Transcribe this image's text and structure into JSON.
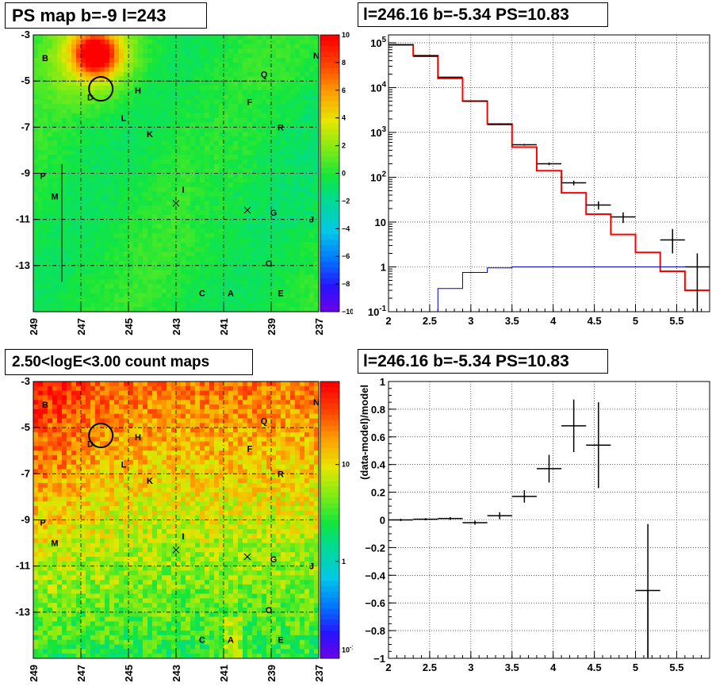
{
  "panels": {
    "ps_map": {
      "title": "PS map b=-9 l=243"
    },
    "spectrum": {
      "title": "l=246.16 b=-5.34 PS=10.83"
    },
    "count_map": {
      "title": "2.50<logE<3.00 count maps"
    },
    "residual": {
      "title": "l=246.16 b=-5.34 PS=10.83"
    }
  },
  "source_labels": [
    "B",
    "N",
    "Q",
    "D",
    "H",
    "F",
    "L",
    "R",
    "K",
    "P",
    "I",
    "M",
    "G",
    "J",
    "O",
    "C",
    "A",
    "E"
  ],
  "colors": {
    "data_line": "#000000",
    "model_red": "#ff0000",
    "model_blue": "#0000cc"
  },
  "chart_data": [
    {
      "type": "heatmap",
      "title": "PS map b=-9 l=243",
      "x_ticks": [
        "249",
        "247",
        "245",
        "243",
        "241",
        "239",
        "237"
      ],
      "y_ticks": [
        "-3",
        "-5",
        "-7",
        "-9",
        "-11",
        "-13"
      ],
      "xlim": [
        249,
        237
      ],
      "ylim": [
        -3,
        -15
      ],
      "colorbar": {
        "min": -10,
        "max": 10,
        "ticks": [
          "10",
          "8",
          "6",
          "4",
          "2",
          "0",
          "−2",
          "−4",
          "−6",
          "−8",
          "−10"
        ]
      },
      "sources": [
        {
          "name": "B",
          "l": 248.5,
          "b": -4.0
        },
        {
          "name": "N",
          "l": 237.1,
          "b": -3.9
        },
        {
          "name": "Q",
          "l": 239.3,
          "b": -4.7
        },
        {
          "name": "D",
          "l": 246.6,
          "b": -5.7
        },
        {
          "name": "H",
          "l": 244.6,
          "b": -5.4
        },
        {
          "name": "F",
          "l": 239.9,
          "b": -5.9
        },
        {
          "name": "L",
          "l": 245.2,
          "b": -6.6
        },
        {
          "name": "R",
          "l": 238.6,
          "b": -7.0
        },
        {
          "name": "K",
          "l": 244.1,
          "b": -7.3
        },
        {
          "name": "P",
          "l": 248.6,
          "b": -9.1
        },
        {
          "name": "I",
          "l": 242.7,
          "b": -9.7
        },
        {
          "name": "M",
          "l": 248.1,
          "b": -10.0
        },
        {
          "name": "G",
          "l": 238.9,
          "b": -10.7
        },
        {
          "name": "J",
          "l": 237.3,
          "b": -11.0
        },
        {
          "name": "O",
          "l": 239.1,
          "b": -12.9
        },
        {
          "name": "C",
          "l": 241.9,
          "b": -14.2
        },
        {
          "name": "A",
          "l": 240.7,
          "b": -14.2
        },
        {
          "name": "E",
          "l": 238.6,
          "b": -14.2
        }
      ],
      "circle": {
        "l": 246.16,
        "b": -5.34
      },
      "crosses": [
        {
          "l": 243.0,
          "b": -10.3
        },
        {
          "l": 240.0,
          "b": -10.6
        }
      ]
    },
    {
      "type": "line",
      "title": "l=246.16 b=-5.34 PS=10.83",
      "x_ticks": [
        "2",
        "2.5",
        "3",
        "3.5",
        "4",
        "4.5",
        "5",
        "5.5"
      ],
      "xlim": [
        2,
        5.9
      ],
      "yscale": "log",
      "ylim": [
        0.1,
        150000
      ],
      "y_ticks": [
        "10^-1",
        "1",
        "10",
        "10^2",
        "10^3",
        "10^4",
        "10^5"
      ],
      "grid": true,
      "data_points": [
        {
          "x": 2.15,
          "xerr": 0.15,
          "y": 90000,
          "yerr_lo": 300,
          "yerr_hi": 300
        },
        {
          "x": 2.45,
          "xerr": 0.15,
          "y": 50000,
          "yerr_lo": 220,
          "yerr_hi": 220
        },
        {
          "x": 2.75,
          "xerr": 0.15,
          "y": 17000,
          "yerr_lo": 130,
          "yerr_hi": 130
        },
        {
          "x": 3.05,
          "xerr": 0.15,
          "y": 5000,
          "yerr_lo": 70,
          "yerr_hi": 70
        },
        {
          "x": 3.35,
          "xerr": 0.15,
          "y": 1500,
          "yerr_lo": 40,
          "yerr_hi": 40
        },
        {
          "x": 3.65,
          "xerr": 0.15,
          "y": 530,
          "yerr_lo": 23,
          "yerr_hi": 23
        },
        {
          "x": 3.95,
          "xerr": 0.15,
          "y": 200,
          "yerr_lo": 14,
          "yerr_hi": 14
        },
        {
          "x": 4.25,
          "xerr": 0.15,
          "y": 75,
          "yerr_lo": 9,
          "yerr_hi": 9
        },
        {
          "x": 4.55,
          "xerr": 0.15,
          "y": 24,
          "yerr_lo": 5,
          "yerr_hi": 5
        },
        {
          "x": 4.85,
          "xerr": 0.15,
          "y": 13,
          "yerr_lo": 3.5,
          "yerr_hi": 3.5
        },
        {
          "x": 5.45,
          "xerr": 0.15,
          "y": 4,
          "yerr_lo": 2,
          "yerr_hi": 3
        },
        {
          "x": 5.75,
          "xerr": 0.15,
          "y": 1,
          "yerr_lo": 0.95,
          "yerr_hi": 1
        }
      ],
      "series": [
        {
          "edges": [
            2.0,
            2.3,
            2.6,
            2.9,
            3.2,
            3.5,
            3.8,
            4.1,
            4.4,
            4.7,
            5.0,
            5.3,
            5.6,
            5.9
          ],
          "values": [
            90000,
            52000,
            16000,
            5000,
            1550,
            470,
            140,
            45,
            15,
            5.3,
            2.1,
            0.8,
            0.3
          ]
        },
        {
          "edges": [
            2.6,
            2.9,
            3.2,
            3.5,
            3.8,
            4.1,
            4.4,
            4.7,
            5.0,
            5.3,
            5.6,
            5.9
          ],
          "values": [
            0.33,
            0.75,
            0.95,
            1.0,
            1.0,
            1.0,
            1.0,
            1.0,
            1.0,
            1.0,
            1.0
          ]
        }
      ]
    },
    {
      "type": "heatmap",
      "title": "2.50<logE<3.00 count maps",
      "x_ticks": [
        "249",
        "247",
        "245",
        "243",
        "241",
        "239",
        "237"
      ],
      "y_ticks": [
        "-3",
        "-5",
        "-7",
        "-9",
        "-11",
        "-13"
      ],
      "xlim": [
        249,
        237
      ],
      "ylim": [
        -3,
        -15
      ],
      "colorbar": {
        "scale": "log",
        "ticks": [
          "10",
          "1",
          "10^-1"
        ]
      }
    },
    {
      "type": "scatter",
      "title": "l=246.16 b=-5.34 PS=10.83",
      "ylabel": "(data-model)/model",
      "x_ticks": [
        "2",
        "2.5",
        "3",
        "3.5",
        "4",
        "4.5",
        "5",
        "5.5"
      ],
      "y_ticks": [
        "1",
        "0.8",
        "0.6",
        "0.4",
        "0.2",
        "0",
        "−0.2",
        "−0.4",
        "−0.6",
        "−0.8",
        "−1"
      ],
      "xlim": [
        2,
        5.9
      ],
      "ylim": [
        -1,
        1
      ],
      "grid": true,
      "points": [
        {
          "x": 2.15,
          "xerr": 0.15,
          "y": 0.0,
          "yerr": 0.008
        },
        {
          "x": 2.45,
          "xerr": 0.15,
          "y": 0.005,
          "yerr": 0.008
        },
        {
          "x": 2.75,
          "xerr": 0.15,
          "y": 0.01,
          "yerr": 0.01
        },
        {
          "x": 3.05,
          "xerr": 0.15,
          "y": -0.02,
          "yerr": 0.015
        },
        {
          "x": 3.35,
          "xerr": 0.15,
          "y": 0.03,
          "yerr": 0.025
        },
        {
          "x": 3.65,
          "xerr": 0.15,
          "y": 0.17,
          "yerr": 0.045
        },
        {
          "x": 3.95,
          "xerr": 0.15,
          "y": 0.37,
          "yerr": 0.1
        },
        {
          "x": 4.25,
          "xerr": 0.15,
          "y": 0.68,
          "yerr": 0.19
        },
        {
          "x": 4.55,
          "xerr": 0.15,
          "y": 0.54,
          "yerr": 0.31
        },
        {
          "x": 5.15,
          "xerr": 0.15,
          "y": -0.51,
          "yerr": 0.48
        }
      ]
    }
  ]
}
